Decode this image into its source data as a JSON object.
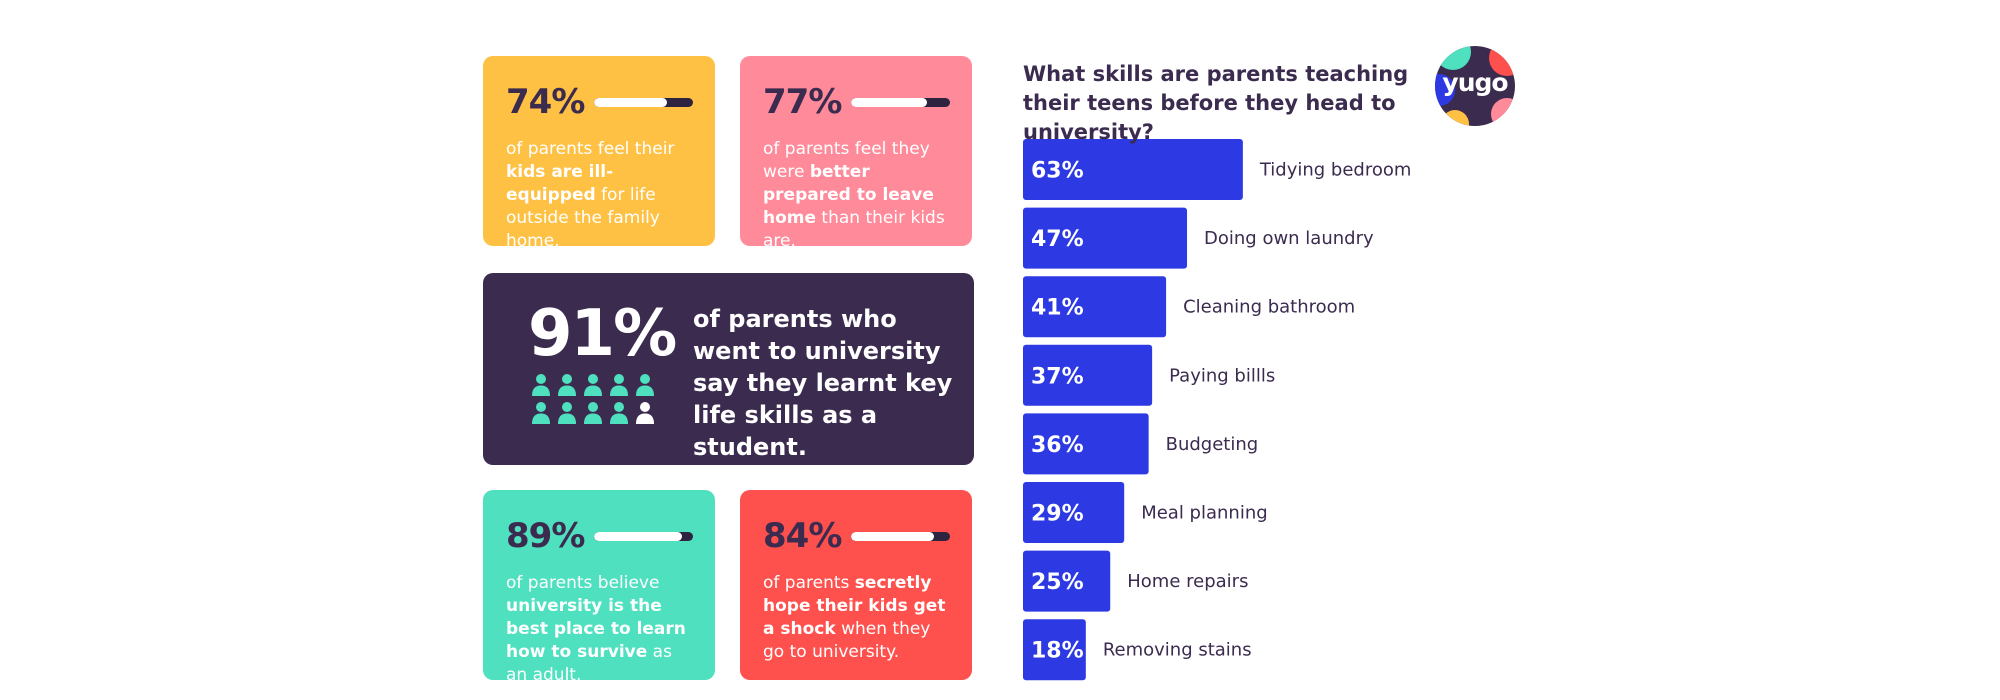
{
  "colors": {
    "dark": "#3b2b4f",
    "bar": "#2d3ae3",
    "yellow": "#fec144",
    "pink": "#fe8a9a",
    "teal": "#4ee0bf",
    "coral": "#fe514e"
  },
  "stats": [
    {
      "id": "74",
      "pct": "74%",
      "level": 0.74,
      "color": "#fec144",
      "text_a": "of parents feel their ",
      "text_b": "kids are ill-equipped",
      "text_c": " for life outside the family home."
    },
    {
      "id": "77",
      "pct": "77%",
      "level": 0.77,
      "color": "#fe8a9a",
      "text_a": "of parents feel they were ",
      "text_b": "better prepared to leave home",
      "text_c": " than their kids are."
    },
    {
      "id": "89",
      "pct": "89%",
      "level": 0.89,
      "color": "#4ee0bf",
      "text_a": "of parents believe ",
      "text_b": "university is the best place to learn how to survive",
      "text_c": " as an adult."
    },
    {
      "id": "84",
      "pct": "84%",
      "level": 0.84,
      "color": "#fe514e",
      "text_a": "of parents ",
      "text_b": "secretly hope their kids get a shock",
      "text_c": " when they go to university."
    }
  ],
  "highlight": {
    "pct": "91%",
    "text": "of parents who went to university say they learnt key life skills as a student.",
    "icons_total": 10,
    "icons_filled": 9,
    "icon": "person-icon"
  },
  "logo": {
    "text": "yugo"
  },
  "chart_data": {
    "type": "bar",
    "orientation": "horizontal",
    "title": "What skills are parents teaching their teens before they head to university?",
    "categories": [
      "Tidying bedroom",
      "Doing own laundry",
      "Cleaning bathroom",
      "Paying billls",
      "Budgeting",
      "Meal planning",
      "Home repairs",
      "Removing stains"
    ],
    "values": [
      63,
      47,
      41,
      37,
      36,
      29,
      25,
      18
    ],
    "value_labels": [
      "63%",
      "47%",
      "41%",
      "37%",
      "36%",
      "29%",
      "25%",
      "18%"
    ],
    "unit": "%",
    "grid": false,
    "legend": "none"
  }
}
